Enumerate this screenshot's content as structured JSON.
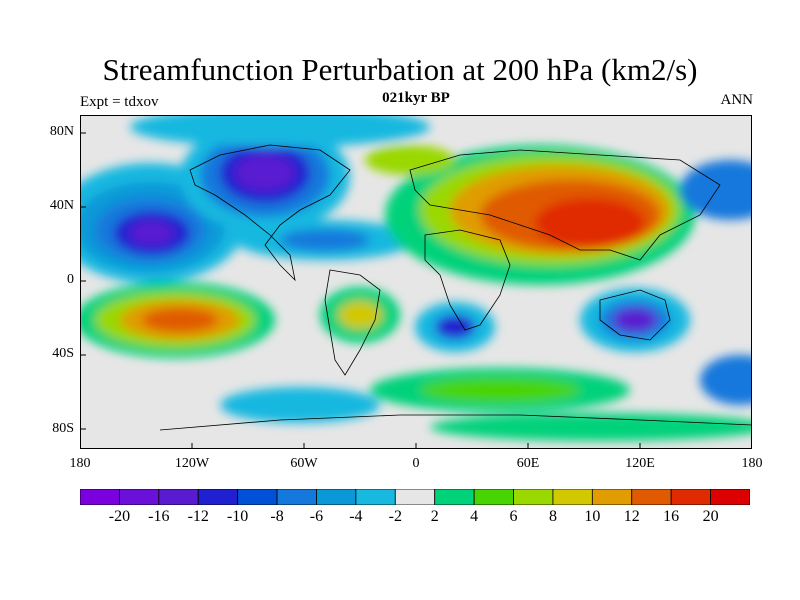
{
  "title": "Streamfunction Perturbation at 200 hPa (km2/s)",
  "subtitle": "021kyr BP",
  "left_label": "Expt = tdxov",
  "right_label": "ANN",
  "map": {
    "projection": "cylindrical-equidistant",
    "lon_ticks": [
      "180",
      "120W",
      "60W",
      "0",
      "60E",
      "120E",
      "180"
    ],
    "lat_ticks": [
      "80N",
      "40N",
      "0",
      "40S",
      "80S"
    ]
  },
  "colorbar": {
    "colors": [
      "#7a00dd",
      "#6a10d8",
      "#5a1ad0",
      "#2020d0",
      "#0050d8",
      "#1478dc",
      "#0a98d8",
      "#18b8e0",
      "#e6e6e6",
      "#00d27a",
      "#48d400",
      "#9ad800",
      "#d2c800",
      "#e09c00",
      "#e05a00",
      "#e02a00",
      "#dc0000"
    ],
    "labels": [
      "-20",
      "-16",
      "-12",
      "-10",
      "-8",
      "-6",
      "-4",
      "-2",
      "2",
      "4",
      "6",
      "8",
      "10",
      "12",
      "16",
      "20"
    ]
  }
}
